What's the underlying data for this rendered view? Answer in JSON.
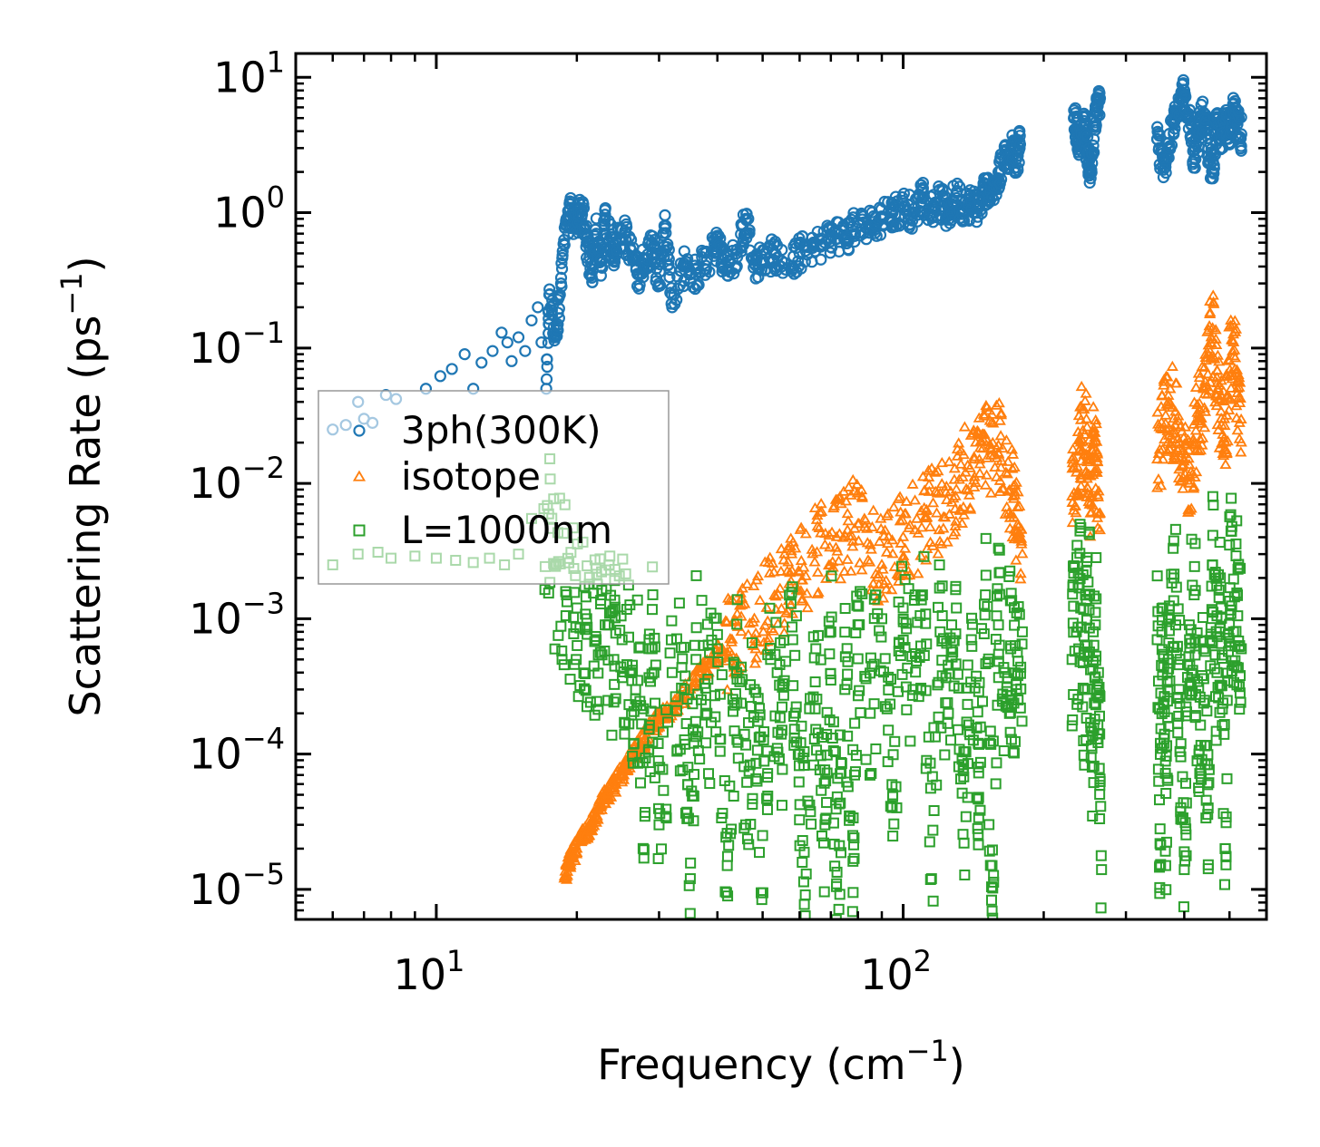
{
  "chart_data": {
    "type": "scatter",
    "title": "",
    "xlabel": "Frequency (cm",
    "xlabel_sup": "−1",
    "xlabel_end": ")",
    "ylabel": "Scattering Rate (ps",
    "ylabel_sup": "−1",
    "ylabel_end": ")",
    "xscale": "log",
    "yscale": "log",
    "xlim": [
      5,
      600
    ],
    "ylim": [
      6e-06,
      15
    ],
    "grid": false,
    "legend_position": "center-left",
    "x_ticks": [
      {
        "value": 10,
        "base": "10",
        "exp": "1"
      },
      {
        "value": 100,
        "base": "10",
        "exp": "2"
      }
    ],
    "y_ticks": [
      {
        "value": 10,
        "base": "10",
        "exp": "1"
      },
      {
        "value": 1,
        "base": "10",
        "exp": "0"
      },
      {
        "value": 0.1,
        "base": "10",
        "exp": "−1"
      },
      {
        "value": 0.01,
        "base": "10",
        "exp": "−2"
      },
      {
        "value": 0.001,
        "base": "10",
        "exp": "−3"
      },
      {
        "value": 0.0001,
        "base": "10",
        "exp": "−4"
      },
      {
        "value": 1e-05,
        "base": "10",
        "exp": "−5"
      }
    ],
    "series": [
      {
        "name": "3ph(300K)",
        "marker": "circle",
        "color": "#1f77b4",
        "points": [
          [
            6.0,
            0.025
          ],
          [
            6.4,
            0.027
          ],
          [
            6.8,
            0.04
          ],
          [
            7.0,
            0.03
          ],
          [
            7.3,
            0.028
          ],
          [
            7.8,
            0.045
          ],
          [
            8.2,
            0.042
          ],
          [
            9.5,
            0.05
          ],
          [
            10.2,
            0.062
          ],
          [
            10.8,
            0.07
          ],
          [
            11.5,
            0.09
          ],
          [
            12.0,
            0.05
          ],
          [
            12.5,
            0.078
          ],
          [
            13.2,
            0.095
          ],
          [
            13.8,
            0.13
          ],
          [
            14.2,
            0.11
          ],
          [
            14.5,
            0.08
          ],
          [
            15.0,
            0.12
          ],
          [
            15.5,
            0.095
          ],
          [
            16.0,
            0.16
          ],
          [
            16.5,
            0.2
          ],
          [
            16.8,
            0.11
          ],
          [
            17.2,
            0.05
          ],
          [
            17.5,
            0.25
          ],
          [
            18.0,
            0.12
          ],
          [
            18.5,
            0.3
          ],
          [
            19.0,
            0.9
          ],
          [
            19.5,
            0.98
          ],
          [
            20.0,
            0.82
          ],
          [
            20.5,
            1.05
          ],
          [
            21.0,
            0.6
          ],
          [
            21.5,
            0.35
          ],
          [
            22.0,
            0.7
          ],
          [
            22.5,
            0.4
          ],
          [
            23.0,
            0.9
          ],
          [
            24.0,
            0.5
          ],
          [
            25.0,
            0.75
          ],
          [
            26.0,
            0.55
          ],
          [
            27.0,
            0.35
          ],
          [
            28.0,
            0.45
          ],
          [
            29.0,
            0.6
          ],
          [
            30.0,
            0.3
          ],
          [
            31.0,
            0.8
          ],
          [
            32.0,
            0.2
          ],
          [
            34.0,
            0.4
          ],
          [
            36.0,
            0.35
          ],
          [
            38.0,
            0.45
          ],
          [
            40.0,
            0.6
          ],
          [
            42.0,
            0.38
          ],
          [
            44.0,
            0.5
          ],
          [
            46.0,
            0.9
          ],
          [
            48.0,
            0.42
          ],
          [
            50.0,
            0.45
          ],
          [
            53.0,
            0.5
          ],
          [
            56.0,
            0.38
          ],
          [
            60.0,
            0.5
          ],
          [
            64.0,
            0.55
          ],
          [
            68.0,
            0.6
          ],
          [
            72.0,
            0.7
          ],
          [
            76.0,
            0.65
          ],
          [
            80.0,
            0.85
          ],
          [
            85.0,
            0.8
          ],
          [
            90.0,
            0.9
          ],
          [
            95.0,
            1.0
          ],
          [
            100.0,
            1.1
          ],
          [
            105.0,
            1.0
          ],
          [
            110.0,
            1.3
          ],
          [
            115.0,
            1.1
          ],
          [
            120.0,
            1.2
          ],
          [
            125.0,
            0.95
          ],
          [
            130.0,
            1.4
          ],
          [
            135.0,
            1.05
          ],
          [
            140.0,
            1.2
          ],
          [
            145.0,
            1.1
          ],
          [
            150.0,
            1.5
          ],
          [
            155.0,
            1.3
          ],
          [
            160.0,
            2.0
          ],
          [
            165.0,
            2.5
          ],
          [
            170.0,
            3.0
          ],
          [
            175.0,
            2.5
          ],
          [
            178.0,
            3.2
          ],
          [
            232.0,
            5.0
          ],
          [
            236.0,
            4.0
          ],
          [
            240.0,
            3.2
          ],
          [
            244.0,
            4.5
          ],
          [
            248.0,
            2.8
          ],
          [
            252.0,
            2.0
          ],
          [
            256.0,
            3.5
          ],
          [
            260.0,
            6.0
          ],
          [
            264.0,
            7.0
          ],
          [
            350.0,
            3.5
          ],
          [
            360.0,
            2.2
          ],
          [
            370.0,
            3.0
          ],
          [
            380.0,
            4.5
          ],
          [
            390.0,
            6.5
          ],
          [
            400.0,
            7.5
          ],
          [
            410.0,
            5.0
          ],
          [
            420.0,
            2.5
          ],
          [
            430.0,
            4.0
          ],
          [
            440.0,
            5.5
          ],
          [
            450.0,
            3.0
          ],
          [
            460.0,
            2.0
          ],
          [
            470.0,
            4.5
          ],
          [
            480.0,
            3.5
          ],
          [
            490.0,
            5.0
          ],
          [
            500.0,
            4.0
          ],
          [
            510.0,
            5.5
          ],
          [
            520.0,
            4.5
          ],
          [
            530.0,
            3.8
          ]
        ]
      },
      {
        "name": "isotope",
        "marker": "triangle",
        "color": "#ff7f0e",
        "points": [
          [
            18.8,
            1.2e-05
          ],
          [
            19.2,
            1.5e-05
          ],
          [
            19.6,
            1.8e-05
          ],
          [
            20.0,
            2e-05
          ],
          [
            20.6,
            2.5e-05
          ],
          [
            21.2,
            2.8e-05
          ],
          [
            21.8,
            3.3e-05
          ],
          [
            22.4,
            4e-05
          ],
          [
            23.0,
            4.8e-05
          ],
          [
            23.8,
            5.5e-05
          ],
          [
            24.5,
            6.5e-05
          ],
          [
            25.2,
            7.5e-05
          ],
          [
            26.0,
            9e-05
          ],
          [
            27.0,
            0.00011
          ],
          [
            28.0,
            0.00013
          ],
          [
            29.0,
            0.00016
          ],
          [
            30.0,
            0.00018
          ],
          [
            31.5,
            0.00021
          ],
          [
            33.0,
            0.00025
          ],
          [
            35.0,
            0.0003
          ],
          [
            37.0,
            0.0004
          ],
          [
            39.0,
            0.0005
          ],
          [
            41.0,
            0.0006
          ],
          [
            43.0,
            0.0007
          ],
          [
            45.0,
            0.0008
          ],
          [
            48.0,
            0.001
          ],
          [
            51.0,
            0.0012
          ],
          [
            54.0,
            0.0015
          ],
          [
            57.0,
            0.0018
          ],
          [
            60.0,
            0.0022
          ],
          [
            64.0,
            0.003
          ],
          [
            68.0,
            0.0035
          ],
          [
            72.0,
            0.004
          ],
          [
            76.0,
            0.0045
          ],
          [
            80.0,
            0.005
          ],
          [
            85.0,
            0.0035
          ],
          [
            90.0,
            0.0025
          ],
          [
            95.0,
            0.003
          ],
          [
            100.0,
            0.004
          ],
          [
            106.0,
            0.0045
          ],
          [
            112.0,
            0.0055
          ],
          [
            118.0,
            0.006
          ],
          [
            124.0,
            0.0075
          ],
          [
            130.0,
            0.009
          ],
          [
            136.0,
            0.012
          ],
          [
            142.0,
            0.015
          ],
          [
            148.0,
            0.018
          ],
          [
            154.0,
            0.016
          ],
          [
            160.0,
            0.019
          ],
          [
            166.0,
            0.012
          ],
          [
            172.0,
            0.008
          ],
          [
            176.0,
            0.005
          ],
          [
            180.0,
            0.003
          ],
          [
            230.0,
            0.008
          ],
          [
            235.0,
            0.012
          ],
          [
            240.0,
            0.02
          ],
          [
            244.0,
            0.035
          ],
          [
            248.0,
            0.015
          ],
          [
            252.0,
            0.008
          ],
          [
            256.0,
            0.02
          ],
          [
            260.0,
            0.012
          ],
          [
            264.0,
            0.006
          ],
          [
            350.0,
            0.015
          ],
          [
            360.0,
            0.025
          ],
          [
            370.0,
            0.04
          ],
          [
            380.0,
            0.03
          ],
          [
            390.0,
            0.02
          ],
          [
            400.0,
            0.015
          ],
          [
            410.0,
            0.01
          ],
          [
            420.0,
            0.02
          ],
          [
            430.0,
            0.03
          ],
          [
            440.0,
            0.05
          ],
          [
            450.0,
            0.09
          ],
          [
            460.0,
            0.14
          ],
          [
            470.0,
            0.06
          ],
          [
            480.0,
            0.03
          ],
          [
            490.0,
            0.02
          ],
          [
            500.0,
            0.08
          ],
          [
            510.0,
            0.11
          ],
          [
            520.0,
            0.05
          ],
          [
            530.0,
            0.02
          ]
        ]
      },
      {
        "name": "L=1000nm",
        "marker": "square",
        "color": "#2ca02c",
        "points": [
          [
            6.0,
            0.0025
          ],
          [
            6.8,
            0.003
          ],
          [
            7.5,
            0.0031
          ],
          [
            8.0,
            0.0028
          ],
          [
            9.0,
            0.0029
          ],
          [
            10.0,
            0.0028
          ],
          [
            11.0,
            0.0027
          ],
          [
            12.0,
            0.0026
          ],
          [
            13.0,
            0.0028
          ],
          [
            14.0,
            0.0025
          ],
          [
            15.0,
            0.003
          ],
          [
            16.0,
            0.0055
          ],
          [
            17.0,
            0.0065
          ],
          [
            18.0,
            0.0025
          ],
          [
            19.0,
            0.0015
          ],
          [
            20.0,
            0.0012
          ],
          [
            21.0,
            0.001
          ],
          [
            22.0,
            0.0007
          ],
          [
            23.0,
            0.0009
          ],
          [
            24.0,
            0.0005
          ],
          [
            25.0,
            0.0007
          ],
          [
            26.0,
            0.0004
          ],
          [
            27.0,
            0.00035
          ],
          [
            28.0,
            3.7e-05
          ],
          [
            29.0,
            0.0006
          ],
          [
            30.0,
            3e-05
          ],
          [
            32.0,
            0.0004
          ],
          [
            34.0,
            0.0003
          ],
          [
            35.0,
            1.2e-05
          ],
          [
            36.0,
            0.0005
          ],
          [
            38.0,
            0.0002
          ],
          [
            40.0,
            0.0006
          ],
          [
            42.0,
            1.5e-05
          ],
          [
            44.0,
            0.0004
          ],
          [
            46.0,
            3e-05
          ],
          [
            48.0,
            0.0003
          ],
          [
            50.0,
            2.5e-05
          ],
          [
            52.0,
            0.0005
          ],
          [
            55.0,
            0.00015
          ],
          [
            58.0,
            0.0007
          ],
          [
            60.0,
            0.0001
          ],
          [
            62.0,
            1.3e-05
          ],
          [
            65.0,
            0.0006
          ],
          [
            68.0,
            3e-05
          ],
          [
            70.0,
            0.0008
          ],
          [
            72.0,
            1.1e-05
          ],
          [
            75.0,
            0.0003
          ],
          [
            78.0,
            2.5e-05
          ],
          [
            80.0,
            0.0009
          ],
          [
            85.0,
            0.0002
          ],
          [
            90.0,
            0.001
          ],
          [
            95.0,
            5e-05
          ],
          [
            100.0,
            0.0012
          ],
          [
            105.0,
            0.0003
          ],
          [
            110.0,
            0.0015
          ],
          [
            115.0,
            1.2e-05
          ],
          [
            120.0,
            0.0008
          ],
          [
            125.0,
            0.0002
          ],
          [
            130.0,
            0.0012
          ],
          [
            135.0,
            2.2e-05
          ],
          [
            140.0,
            0.0007
          ],
          [
            145.0,
            8e-05
          ],
          [
            150.0,
            0.0015
          ],
          [
            155.0,
            1.5e-05
          ],
          [
            160.0,
            0.0009
          ],
          [
            165.0,
            0.0004
          ],
          [
            170.0,
            0.0006
          ],
          [
            175.0,
            0.0003
          ],
          [
            180.0,
            0.0008
          ],
          [
            230.0,
            0.0005
          ],
          [
            235.0,
            0.0008
          ],
          [
            240.0,
            0.0012
          ],
          [
            245.0,
            0.0003
          ],
          [
            250.0,
            0.0015
          ],
          [
            254.0,
            8e-05
          ],
          [
            258.0,
            0.0009
          ],
          [
            262.0,
            0.0004
          ],
          [
            266.0,
            1.4e-05
          ],
          [
            350.0,
            0.0007
          ],
          [
            355.0,
            2.8e-05
          ],
          [
            360.0,
            0.0012
          ],
          [
            365.0,
            1.5e-05
          ],
          [
            370.0,
            0.0005
          ],
          [
            380.0,
            0.002
          ],
          [
            390.0,
            0.0003
          ],
          [
            400.0,
            1.4e-05
          ],
          [
            410.0,
            0.0009
          ],
          [
            420.0,
            0.0015
          ],
          [
            430.0,
            0.0001
          ],
          [
            440.0,
            0.0006
          ],
          [
            450.0,
            4e-05
          ],
          [
            460.0,
            0.0025
          ],
          [
            470.0,
            0.0004
          ],
          [
            480.0,
            0.0012
          ],
          [
            490.0,
            2e-05
          ],
          [
            500.0,
            0.0035
          ],
          [
            510.0,
            0.0008
          ],
          [
            520.0,
            0.0015
          ],
          [
            530.0,
            0.0006
          ]
        ]
      }
    ]
  }
}
